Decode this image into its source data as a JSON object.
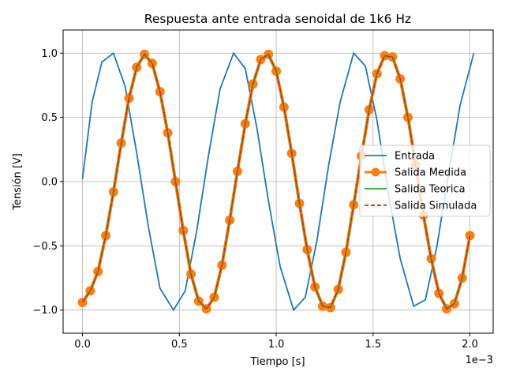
{
  "chart_data": {
    "type": "line",
    "title": "Respuesta ante entrada senoidal de 1k6 Hz",
    "xlabel": "Tiempo [s]",
    "ylabel": "Tensión [V]",
    "x_offset_text": "1e−3",
    "xlim": [
      -0.0001,
      0.00212
    ],
    "ylim": [
      -1.18,
      1.18
    ],
    "grid": true,
    "legend_position": "center-right",
    "x_ticks": [
      {
        "value": 0.0,
        "label": "0.0"
      },
      {
        "value": 0.0005,
        "label": "0.5"
      },
      {
        "value": 0.001,
        "label": "1.0"
      },
      {
        "value": 0.0015,
        "label": "1.5"
      },
      {
        "value": 0.002,
        "label": "2.0"
      }
    ],
    "y_ticks": [
      {
        "value": 1.0,
        "label": "1.0"
      },
      {
        "value": 0.5,
        "label": "0.5"
      },
      {
        "value": 0.0,
        "label": "0.0"
      },
      {
        "value": -0.5,
        "label": "−0.5"
      },
      {
        "value": -1.0,
        "label": "−1.0"
      }
    ],
    "series": [
      {
        "name": "Entrada",
        "style": "line",
        "color": "#1f77b4",
        "x": [
          0.0,
          5e-05,
          0.0001,
          0.00016,
          0.00022,
          0.00028,
          0.00034,
          0.0004,
          0.00047,
          0.00053,
          0.00059,
          0.00065,
          0.00071,
          0.00078,
          0.00084,
          0.0009,
          0.00096,
          0.00102,
          0.00109,
          0.00115,
          0.00121,
          0.00127,
          0.00133,
          0.0014,
          0.00146,
          0.00152,
          0.00158,
          0.00164,
          0.00171,
          0.00177,
          0.00183,
          0.00189,
          0.00195,
          0.00202
        ],
        "y": [
          0.02,
          0.62,
          0.93,
          1.0,
          0.74,
          0.22,
          -0.35,
          -0.83,
          -1.0,
          -0.85,
          -0.38,
          0.2,
          0.72,
          1.0,
          0.88,
          0.42,
          -0.15,
          -0.66,
          -1.0,
          -0.9,
          -0.46,
          0.12,
          0.62,
          1.0,
          0.9,
          0.48,
          -0.1,
          -0.6,
          -0.97,
          -0.92,
          -0.5,
          0.06,
          0.6,
          1.0
        ]
      },
      {
        "name": "Salida Medida",
        "style": "line-marker",
        "color": "#ff7f0e",
        "x": [
          0.0,
          4e-05,
          8e-05,
          0.00012,
          0.00016,
          0.0002,
          0.00024,
          0.00028,
          0.00032,
          0.00036,
          0.0004,
          0.00044,
          0.00048,
          0.00052,
          0.00056,
          0.0006,
          0.00064,
          0.00068,
          0.00072,
          0.00076,
          0.0008,
          0.00084,
          0.00088,
          0.00092,
          0.00096,
          0.001,
          0.00104,
          0.00108,
          0.00112,
          0.00116,
          0.0012,
          0.00124,
          0.00128,
          0.00132,
          0.00136,
          0.0014,
          0.00144,
          0.00148,
          0.00152,
          0.00156,
          0.0016,
          0.00164,
          0.00168,
          0.00172,
          0.00176,
          0.0018,
          0.00184,
          0.00188,
          0.00192,
          0.00196,
          0.002
        ],
        "y": [
          -0.94,
          -0.85,
          -0.7,
          -0.42,
          -0.08,
          0.3,
          0.65,
          0.89,
          0.99,
          0.92,
          0.7,
          0.38,
          0.0,
          -0.38,
          -0.72,
          -0.93,
          -0.99,
          -0.9,
          -0.65,
          -0.3,
          0.08,
          0.45,
          0.76,
          0.95,
          0.99,
          0.86,
          0.58,
          0.22,
          -0.17,
          -0.53,
          -0.82,
          -0.97,
          -0.98,
          -0.84,
          -0.55,
          -0.18,
          0.2,
          0.56,
          0.84,
          0.98,
          0.97,
          0.8,
          0.5,
          0.13,
          -0.26,
          -0.6,
          -0.87,
          -0.99,
          -0.95,
          -0.75,
          -0.42
        ]
      },
      {
        "name": "Salida Teorica",
        "style": "line",
        "color": "#2ca02c",
        "x": [
          0.0,
          4e-05,
          8e-05,
          0.00012,
          0.00016,
          0.0002,
          0.00024,
          0.00028,
          0.00032,
          0.00036,
          0.0004,
          0.00044,
          0.00048,
          0.00052,
          0.00056,
          0.0006,
          0.00064,
          0.00068,
          0.00072,
          0.00076,
          0.0008,
          0.00084,
          0.00088,
          0.00092,
          0.00096,
          0.001,
          0.00104,
          0.00108,
          0.00112,
          0.00116,
          0.0012,
          0.00124,
          0.00128,
          0.00132,
          0.00136,
          0.0014,
          0.00144,
          0.00148,
          0.00152,
          0.00156,
          0.0016,
          0.00164,
          0.00168,
          0.00172,
          0.00176,
          0.0018,
          0.00184,
          0.00188,
          0.00192,
          0.00196,
          0.002
        ],
        "y": [
          -0.94,
          -0.85,
          -0.7,
          -0.42,
          -0.08,
          0.3,
          0.65,
          0.89,
          0.99,
          0.92,
          0.7,
          0.38,
          0.0,
          -0.38,
          -0.72,
          -0.93,
          -0.99,
          -0.9,
          -0.65,
          -0.3,
          0.08,
          0.45,
          0.76,
          0.95,
          0.99,
          0.86,
          0.58,
          0.22,
          -0.17,
          -0.53,
          -0.82,
          -0.97,
          -0.98,
          -0.84,
          -0.55,
          -0.18,
          0.2,
          0.56,
          0.84,
          0.98,
          0.97,
          0.8,
          0.5,
          0.13,
          -0.26,
          -0.6,
          -0.87,
          -0.99,
          -0.95,
          -0.75,
          -0.42
        ]
      },
      {
        "name": "Salida Simulada",
        "style": "dashed",
        "color": "#d62728",
        "x": [
          0.0,
          4e-05,
          8e-05,
          0.00012,
          0.00016,
          0.0002,
          0.00024,
          0.00028,
          0.00032,
          0.00036,
          0.0004,
          0.00044,
          0.00048,
          0.00052,
          0.00056,
          0.0006,
          0.00064,
          0.00068,
          0.00072,
          0.00076,
          0.0008,
          0.00084,
          0.00088,
          0.00092,
          0.00096,
          0.001,
          0.00104,
          0.00108,
          0.00112,
          0.00116,
          0.0012,
          0.00124,
          0.00128,
          0.00132,
          0.00136,
          0.0014,
          0.00144,
          0.00148,
          0.00152,
          0.00156,
          0.0016,
          0.00164,
          0.00168,
          0.00172,
          0.00176,
          0.0018,
          0.00184,
          0.00188,
          0.00192,
          0.00196,
          0.002
        ],
        "y": [
          -0.94,
          -0.85,
          -0.7,
          -0.42,
          -0.08,
          0.3,
          0.65,
          0.89,
          0.99,
          0.92,
          0.7,
          0.38,
          0.0,
          -0.38,
          -0.72,
          -0.93,
          -0.99,
          -0.9,
          -0.65,
          -0.3,
          0.08,
          0.45,
          0.76,
          0.95,
          0.99,
          0.86,
          0.58,
          0.22,
          -0.17,
          -0.53,
          -0.82,
          -0.97,
          -0.98,
          -0.84,
          -0.55,
          -0.18,
          0.2,
          0.56,
          0.84,
          0.98,
          0.97,
          0.8,
          0.5,
          0.13,
          -0.26,
          -0.6,
          -0.87,
          -0.99,
          -0.95,
          -0.75,
          -0.42
        ]
      }
    ]
  }
}
